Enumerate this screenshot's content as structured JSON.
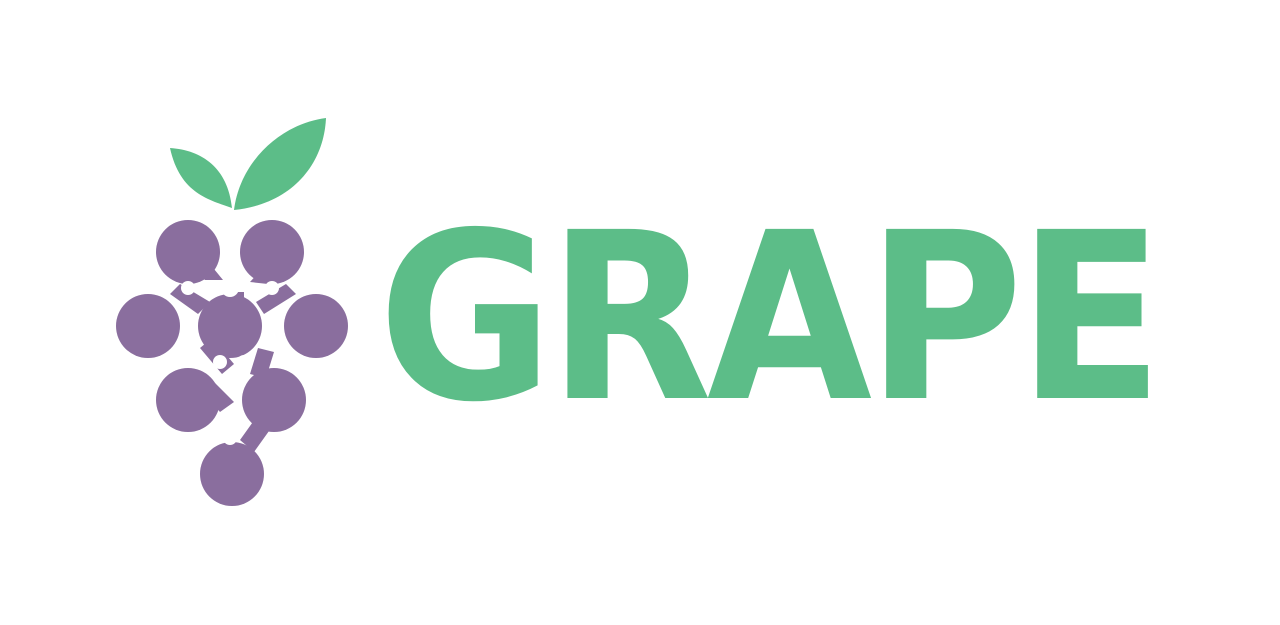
{
  "brand": {
    "name": "GRAPE",
    "colors": {
      "grape_purple": "#8a6e9e",
      "leaf_green": "#5cbd88",
      "background": "#ffffff"
    },
    "icon": "grape-cluster-icon"
  }
}
